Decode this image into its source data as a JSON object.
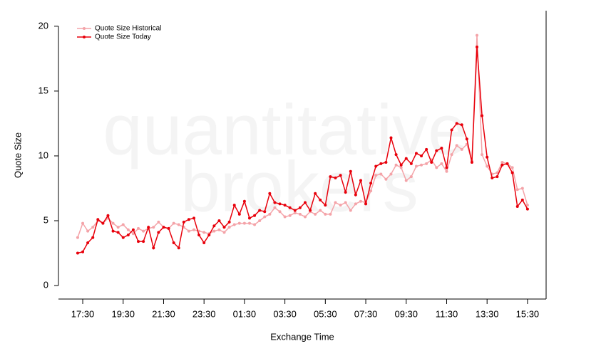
{
  "chart_data": {
    "type": "line",
    "xlabel": "Exchange Time",
    "ylabel": "Quote Size",
    "annotations": [
      "quantitative",
      "brokers"
    ],
    "x": [
      17.25,
      17.5,
      17.75,
      18,
      18.25,
      18.5,
      18.75,
      19,
      19.25,
      19.5,
      19.75,
      20,
      20.25,
      20.5,
      20.75,
      21,
      21.25,
      21.5,
      21.75,
      22,
      22.25,
      22.5,
      22.75,
      23,
      23.25,
      23.5,
      23.75,
      24,
      24.25,
      24.5,
      24.75,
      25,
      25.25,
      25.5,
      25.75,
      26,
      26.25,
      26.5,
      26.75,
      27,
      27.25,
      27.5,
      27.75,
      28,
      28.25,
      28.5,
      28.75,
      29,
      29.25,
      29.5,
      29.75,
      30,
      30.25,
      30.5,
      30.75,
      31,
      31.25,
      31.5,
      31.75,
      32,
      32.25,
      32.5,
      32.75,
      33,
      33.25,
      33.5,
      33.75,
      34,
      34.25,
      34.5,
      34.75,
      35,
      35.25,
      35.5,
      35.75,
      36,
      36.25,
      36.5,
      36.75,
      37,
      37.25,
      37.5,
      37.75,
      38,
      38.25,
      38.5,
      38.75,
      39,
      39.25,
      39.5
    ],
    "series": [
      {
        "name": "Quote Size Historical",
        "color": "#f4a3a8",
        "values": [
          3.7,
          4.8,
          4.2,
          4.5,
          5.0,
          4.8,
          5.2,
          4.8,
          4.5,
          4.7,
          4.3,
          4.0,
          4.4,
          4.2,
          4.4,
          4.5,
          4.9,
          4.5,
          4.4,
          4.8,
          4.7,
          4.5,
          4.2,
          4.3,
          4.2,
          4.1,
          4.0,
          4.2,
          4.3,
          4.1,
          4.5,
          4.7,
          4.8,
          4.8,
          4.8,
          4.7,
          5.0,
          5.3,
          5.5,
          6.0,
          5.7,
          5.3,
          5.4,
          5.6,
          5.5,
          5.3,
          5.7,
          5.5,
          5.8,
          5.5,
          5.5,
          6.4,
          6.2,
          6.4,
          5.8,
          6.3,
          6.5,
          6.4,
          7.3,
          8.5,
          8.6,
          8.2,
          8.6,
          9.3,
          9.1,
          8.1,
          8.4,
          9.2,
          9.3,
          9.4,
          9.7,
          9.1,
          9.4,
          8.8,
          10.1,
          10.8,
          10.5,
          10.9,
          9.6,
          19.3,
          10.1,
          9.2,
          8.6,
          8.7,
          9.5,
          9.4,
          9.1,
          7.4,
          7.5,
          6.2
        ]
      },
      {
        "name": "Quote Size Today",
        "color": "#e8000b",
        "values": [
          2.5,
          2.6,
          3.3,
          3.7,
          5.1,
          4.8,
          5.4,
          4.2,
          4.1,
          3.7,
          3.9,
          4.3,
          3.4,
          3.4,
          4.5,
          2.9,
          4.1,
          4.5,
          4.4,
          3.3,
          2.9,
          4.9,
          5.1,
          5.2,
          3.9,
          3.3,
          3.9,
          4.6,
          5.0,
          4.5,
          4.9,
          6.2,
          5.5,
          6.5,
          5.2,
          5.4,
          5.8,
          5.7,
          7.1,
          6.4,
          6.3,
          6.2,
          6.0,
          5.8,
          6.0,
          6.4,
          5.8,
          7.1,
          6.6,
          6.2,
          8.4,
          8.3,
          8.5,
          7.2,
          8.8,
          7.0,
          8.1,
          6.3,
          7.9,
          9.2,
          9.4,
          9.5,
          11.4,
          10.1,
          9.3,
          9.8,
          9.4,
          10.2,
          10.0,
          10.5,
          9.5,
          10.4,
          10.6,
          9.1,
          12.0,
          12.5,
          12.4,
          11.3,
          9.5,
          18.4,
          13.1,
          9.9,
          8.3,
          8.4,
          9.3,
          9.4,
          8.7,
          6.1,
          6.6,
          5.9
        ]
      }
    ],
    "xlim": [
      16.3,
      40.42
    ],
    "xticks": [
      {
        "value": 17.5,
        "label": "17:30"
      },
      {
        "value": 19.5,
        "label": "19:30"
      },
      {
        "value": 21.5,
        "label": "21:30"
      },
      {
        "value": 23.5,
        "label": "23:30"
      },
      {
        "value": 25.5,
        "label": "01:30"
      },
      {
        "value": 27.5,
        "label": "03:30"
      },
      {
        "value": 29.5,
        "label": "05:30"
      },
      {
        "value": 31.5,
        "label": "07:30"
      },
      {
        "value": 33.5,
        "label": "09:30"
      },
      {
        "value": 35.5,
        "label": "11:30"
      },
      {
        "value": 37.5,
        "label": "13:30"
      },
      {
        "value": 39.5,
        "label": "15:30"
      }
    ],
    "ylim": [
      -1.04,
      21.2
    ],
    "yticks": [
      0,
      5,
      10,
      15,
      20
    ],
    "legend": "top-left"
  }
}
